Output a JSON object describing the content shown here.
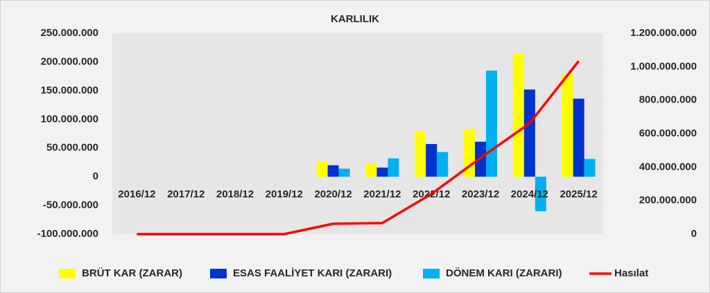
{
  "chart_data": {
    "type": "bar",
    "title": "KARLILIK",
    "categories": [
      "2016/12",
      "2017/12",
      "2018/12",
      "2019/12",
      "2020/12",
      "2021/12",
      "2022/12",
      "2023/12",
      "2024/12",
      "2025/12"
    ],
    "series": [
      {
        "name": "BRÜT KAR (ZARAR)",
        "color": "#ffff00",
        "type": "bar",
        "values": [
          0,
          0,
          0,
          0,
          26000000,
          22000000,
          80000000,
          82000000,
          215000000,
          178000000
        ]
      },
      {
        "name": "ESAS FAALİYET KARI (ZARARI)",
        "color": "#0033cc",
        "type": "bar",
        "values": [
          0,
          0,
          0,
          0,
          20000000,
          16000000,
          57000000,
          61000000,
          152000000,
          136000000
        ]
      },
      {
        "name": "DÖNEM KARI (ZARARI)",
        "color": "#00b0f0",
        "type": "bar",
        "values": [
          0,
          0,
          0,
          0,
          14000000,
          32000000,
          43000000,
          185000000,
          -60000000,
          31000000
        ]
      },
      {
        "name": "Hasılat",
        "color": "#ff0000",
        "type": "line",
        "axis": "y2",
        "values": [
          0,
          0,
          0,
          0,
          62000000,
          66000000,
          240000000,
          455000000,
          662000000,
          1034000000
        ]
      }
    ],
    "ylim": [
      -100000000,
      250000000
    ],
    "yticks": [
      {
        "value": -100000000,
        "label": "-100.000.000"
      },
      {
        "value": -50000000,
        "label": "-50.000.000"
      },
      0,
      {
        "value": 50000000,
        "label": "50.000.000"
      },
      {
        "value": 100000000,
        "label": "100.000.000"
      },
      {
        "value": 150000000,
        "label": "150.000.000"
      },
      {
        "value": 200000000,
        "label": "200.000.000"
      },
      {
        "value": 250000000,
        "label": "250.000.000"
      }
    ],
    "y2lim": [
      0,
      1200000000
    ],
    "y2ticks": [
      0,
      {
        "value": 200000000,
        "label": "200.000.000"
      },
      {
        "value": 400000000,
        "label": "400.000.000"
      },
      {
        "value": 600000000,
        "label": "600.000.000"
      },
      {
        "value": 800000000,
        "label": "800.000.000"
      },
      {
        "value": 1000000000,
        "label": "1.000.000.000"
      },
      {
        "value": 1200000000,
        "label": "1.200.000.000"
      }
    ],
    "legend": "bottom"
  }
}
